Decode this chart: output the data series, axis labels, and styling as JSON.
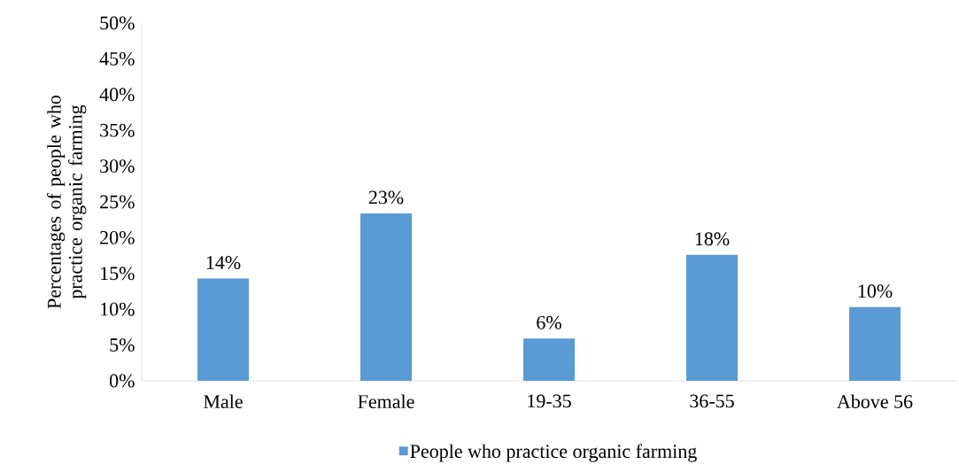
{
  "chart_data": {
    "type": "bar",
    "ylabel": "Percentages of people who practice organic farming",
    "categories": [
      "Male",
      "Female",
      "19-35",
      "36-55",
      "Above 56"
    ],
    "series": [
      {
        "name": "People who practice organic farming",
        "color": "#5b9bd5",
        "values": [
          14.3,
          23.4,
          5.9,
          17.6,
          10.3
        ],
        "value_labels": [
          "14%",
          "23%",
          "6%",
          "18%",
          "10%"
        ]
      }
    ],
    "ylim": [
      0,
      50
    ],
    "yticks": [
      {
        "value": 0,
        "label": "0%"
      },
      {
        "value": 5,
        "label": "5%"
      },
      {
        "value": 10,
        "label": "10%"
      },
      {
        "value": 15,
        "label": "15%"
      },
      {
        "value": 20,
        "label": "20%"
      },
      {
        "value": 25,
        "label": "25%"
      },
      {
        "value": 30,
        "label": "30%"
      },
      {
        "value": 35,
        "label": "35%"
      },
      {
        "value": 40,
        "label": "40%"
      },
      {
        "value": 45,
        "label": "45%"
      },
      {
        "value": 50,
        "label": "50%"
      }
    ],
    "legend": "bottom"
  }
}
